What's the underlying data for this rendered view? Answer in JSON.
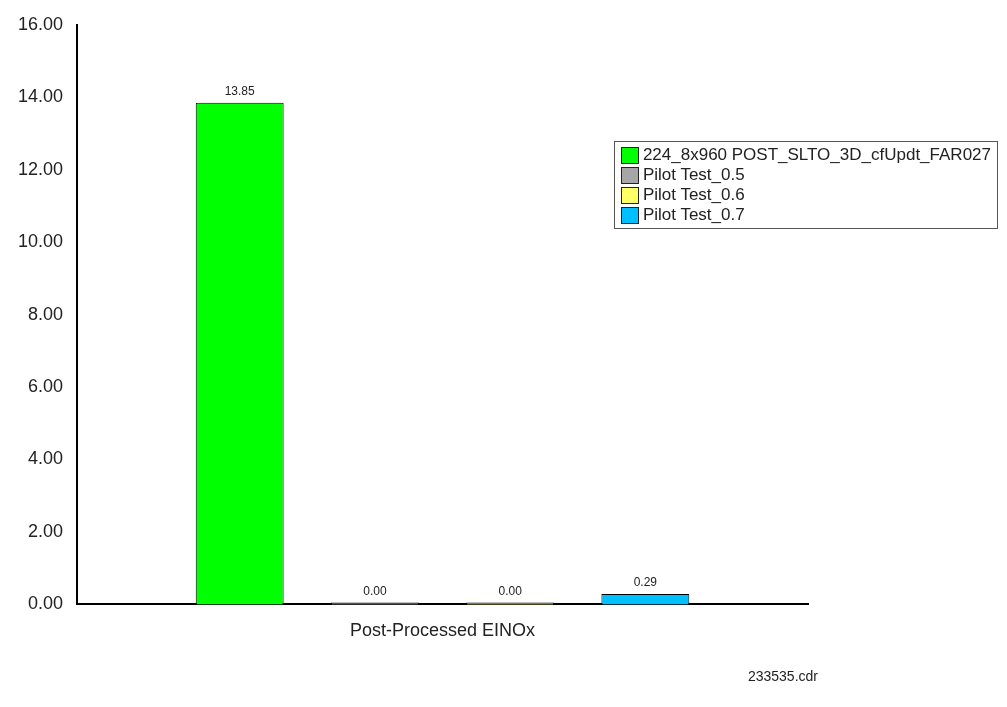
{
  "chart_data": {
    "type": "bar",
    "categories": [
      "Post-Processed EINOx"
    ],
    "series": [
      {
        "name": "224_8x960 POST_SLTO_3D_cfUpdt_FAR027",
        "color": "#00ff00",
        "values": [
          13.85
        ],
        "value_labels": [
          "13.85"
        ]
      },
      {
        "name": "Pilot Test_0.5",
        "color": "#a6a6a6",
        "values": [
          0.0
        ],
        "value_labels": [
          "0.00"
        ]
      },
      {
        "name": "Pilot Test_0.6",
        "color": "#ffff66",
        "values": [
          0.0
        ],
        "value_labels": [
          "0.00"
        ]
      },
      {
        "name": "Pilot Test_0.7",
        "color": "#00bfff",
        "values": [
          0.29
        ],
        "value_labels": [
          "0.29"
        ]
      }
    ],
    "ylim": [
      0,
      16
    ],
    "yticks": [
      {
        "value": 0,
        "label": "0.00"
      },
      {
        "value": 2,
        "label": "2.00"
      },
      {
        "value": 4,
        "label": "4.00"
      },
      {
        "value": 6,
        "label": "6.00"
      },
      {
        "value": 8,
        "label": "8.00"
      },
      {
        "value": 10,
        "label": "10.00"
      },
      {
        "value": 12,
        "label": "12.00"
      },
      {
        "value": 14,
        "label": "14.00"
      },
      {
        "value": 16,
        "label": "16.00"
      }
    ],
    "grid": false,
    "legend": "top right",
    "annotations": [
      "233535.cdr"
    ]
  }
}
